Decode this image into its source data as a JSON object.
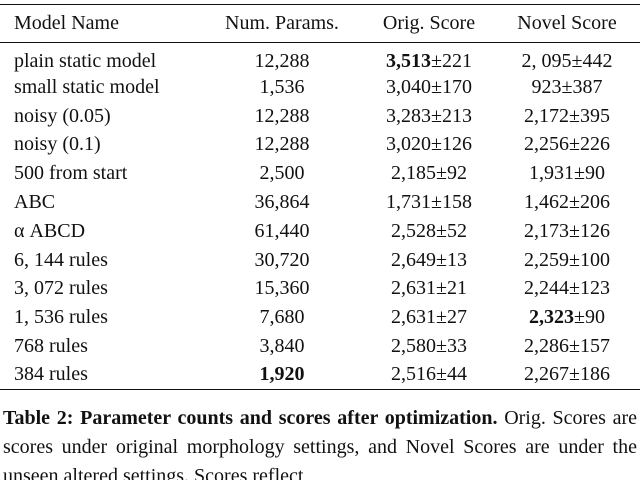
{
  "table": {
    "header": [
      "Model Name",
      "Num. Params.",
      "Orig. Score",
      "Novel Score"
    ],
    "rows": [
      {
        "model": "plain static model",
        "params": {
          "text": "12,288"
        },
        "orig": {
          "score": "3,513",
          "error": "±221",
          "bold": true
        },
        "novel": {
          "score": "2, 095",
          "error": "±442"
        }
      },
      {
        "model": "small static model",
        "params": {
          "text": "1,536"
        },
        "orig": {
          "score": "3,040",
          "error": "±170"
        },
        "novel": {
          "score": "923",
          "error": "±387"
        }
      },
      {
        "model": "noisy (0.05)",
        "params": {
          "text": "12,288"
        },
        "orig": {
          "score": "3,283",
          "error": "±213"
        },
        "novel": {
          "score": "2,172",
          "error": "±395"
        }
      },
      {
        "model": "noisy (0.1)",
        "params": {
          "text": "12,288"
        },
        "orig": {
          "score": "3,020",
          "error": "±126"
        },
        "novel": {
          "score": "2,256",
          "error": "±226"
        }
      },
      {
        "model": "500 from start",
        "params": {
          "text": "2,500"
        },
        "orig": {
          "score": "2,185",
          "error": "±92"
        },
        "novel": {
          "score": "1,931",
          "error": "±90"
        }
      },
      {
        "model": "ABC",
        "params": {
          "text": "36,864"
        },
        "orig": {
          "score": "1,731",
          "error": "±158"
        },
        "novel": {
          "score": "1,462",
          "error": "±206"
        }
      },
      {
        "model": "α ABCD",
        "params": {
          "text": "61,440"
        },
        "orig": {
          "score": "2,528",
          "error": "±52"
        },
        "novel": {
          "score": "2,173",
          "error": "±126"
        }
      },
      {
        "model": "6, 144 rules",
        "params": {
          "text": "30,720"
        },
        "orig": {
          "score": "2,649",
          "error": "±13"
        },
        "novel": {
          "score": "2,259",
          "error": "±100"
        }
      },
      {
        "model": "3, 072 rules",
        "params": {
          "text": "15,360"
        },
        "orig": {
          "score": "2,631",
          "error": "±21"
        },
        "novel": {
          "score": "2,244",
          "error": "±123"
        }
      },
      {
        "model": "1, 536 rules",
        "params": {
          "text": "7,680"
        },
        "orig": {
          "score": "2,631",
          "error": "±27"
        },
        "novel": {
          "score": "2,323",
          "error": "±90",
          "bold": true
        }
      },
      {
        "model": "768 rules",
        "params": {
          "text": "3,840"
        },
        "orig": {
          "score": "2,580",
          "error": "±33"
        },
        "novel": {
          "score": "2,286",
          "error": "±157"
        }
      },
      {
        "model": "384 rules",
        "params": {
          "text": "1,920",
          "bold": true
        },
        "orig": {
          "score": "2,516",
          "error": "±44"
        },
        "novel": {
          "score": "2,267",
          "error": "±186"
        }
      }
    ]
  },
  "caption": {
    "label": "Table 2:",
    "title": "Parameter counts and scores after optimization.",
    "text": "Orig. Scores are scores under original morphology settings, and Novel Scores are under the unseen altered settings. Scores reflect"
  }
}
